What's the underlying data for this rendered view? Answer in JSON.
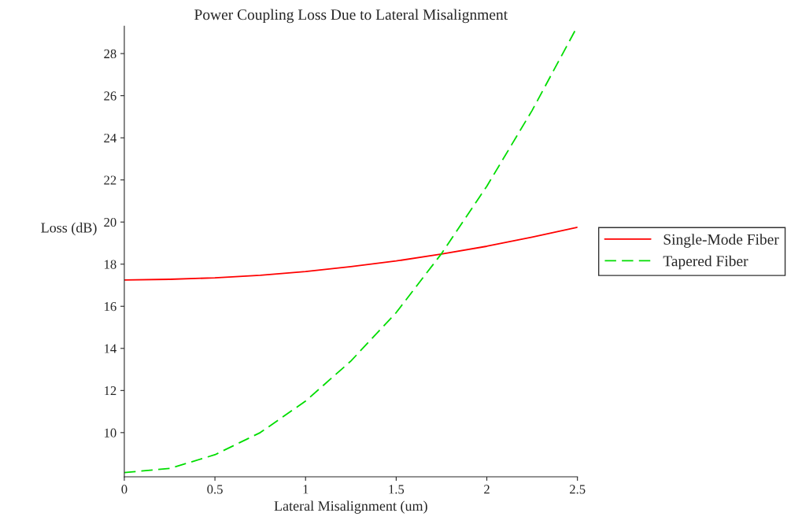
{
  "chart_data": {
    "type": "line",
    "title": "Power Coupling Loss Due to Lateral Misalignment",
    "xlabel": "Lateral Misalignment (um)",
    "ylabel": "Loss (dB)",
    "x": [
      0,
      0.25,
      0.5,
      0.75,
      1,
      1.25,
      1.5,
      1.75,
      2,
      2.25,
      2.5
    ],
    "series": [
      {
        "name": "Single-Mode Fiber",
        "color": "#ff0000",
        "line_style": "solid",
        "values": [
          17.25,
          17.28,
          17.35,
          17.47,
          17.65,
          17.88,
          18.15,
          18.48,
          18.85,
          19.28,
          19.75
        ]
      },
      {
        "name": "Tapered Fiber",
        "color": "#00dd00",
        "line_style": "dashed",
        "values": [
          8.1,
          8.3,
          8.95,
          10.0,
          11.5,
          13.4,
          15.7,
          18.5,
          21.7,
          25.3,
          29.3
        ]
      }
    ],
    "xlim": [
      0,
      2.5
    ],
    "ylim": [
      7.9,
      29.3
    ],
    "xticks": [
      0,
      0.5,
      1,
      1.5,
      2,
      2.5
    ],
    "yticks": [
      10,
      12,
      14,
      16,
      18,
      20,
      22,
      24,
      26,
      28
    ],
    "grid": false,
    "legend": "right",
    "marker": "none"
  }
}
